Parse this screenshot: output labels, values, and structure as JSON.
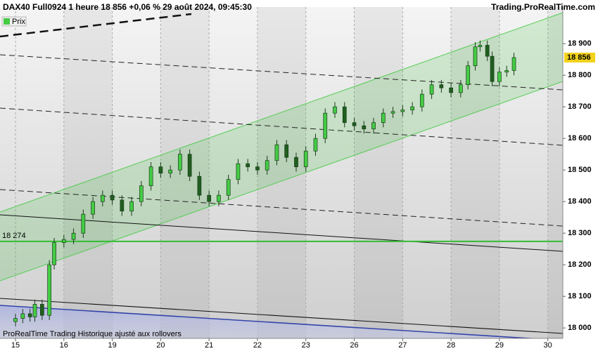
{
  "chart_data": {
    "type": "candlestick",
    "title": "DAX40 Full0924 1 heure 18 856 +0,06 % 29 août 2024, 09:45:30",
    "source": "Trading.ProRealTime.com",
    "footer": "ProRealTime Trading  Historique ajusté aux rollovers",
    "ylim": [
      17967,
      19016
    ],
    "yticks": [
      {
        "value": 18000,
        "label": "18 000"
      },
      {
        "value": 18100,
        "label": "18 100"
      },
      {
        "value": 18200,
        "label": "18 200"
      },
      {
        "value": 18300,
        "label": "18 300"
      },
      {
        "value": 18400,
        "label": "18 400"
      },
      {
        "value": 18500,
        "label": "18 500"
      },
      {
        "value": 18600,
        "label": "18 600"
      },
      {
        "value": 18700,
        "label": "18 700"
      },
      {
        "value": 18800,
        "label": "18 800"
      },
      {
        "value": 18900,
        "label": "18 900"
      }
    ],
    "xlim": [
      -0.32,
      11.31
    ],
    "xticks": [
      {
        "value": 0,
        "label": "15"
      },
      {
        "value": 1,
        "label": "16"
      },
      {
        "value": 2,
        "label": "19"
      },
      {
        "value": 3,
        "label": "20"
      },
      {
        "value": 4,
        "label": "21"
      },
      {
        "value": 5,
        "label": "22"
      },
      {
        "value": 6,
        "label": "23"
      },
      {
        "value": 7,
        "label": "26"
      },
      {
        "value": 8,
        "label": "27"
      },
      {
        "value": 9,
        "label": "28"
      },
      {
        "value": 10,
        "label": "29"
      },
      {
        "value": 11,
        "label": "30"
      }
    ],
    "hline": {
      "value": 18274,
      "label": "18 274",
      "color": "#33bb33"
    },
    "last_price": {
      "value": 18856,
      "label": "18 856"
    },
    "series": [
      {
        "name": "Prix",
        "color": "#44cc44",
        "down_color": "#1f5f1f",
        "x": [
          0.0,
          0.15,
          0.3,
          0.4,
          0.55,
          0.7,
          0.8,
          1.0,
          1.2,
          1.4,
          1.6,
          1.8,
          2.0,
          2.2,
          2.4,
          2.6,
          2.8,
          3.0,
          3.2,
          3.4,
          3.6,
          3.8,
          4.0,
          4.2,
          4.4,
          4.6,
          4.8,
          5.0,
          5.2,
          5.4,
          5.6,
          5.8,
          6.0,
          6.2,
          6.4,
          6.6,
          6.8,
          7.0,
          7.2,
          7.4,
          7.6,
          7.8,
          8.0,
          8.2,
          8.4,
          8.6,
          8.8,
          9.0,
          9.2,
          9.35,
          9.5,
          9.6,
          9.75,
          9.85,
          10.0,
          10.15,
          10.3
        ],
        "open": [
          18020,
          18030,
          18045,
          18035,
          18075,
          18040,
          18200,
          18270,
          18280,
          18300,
          18360,
          18400,
          18420,
          18405,
          18370,
          18400,
          18450,
          18510,
          18490,
          18500,
          18550,
          18480,
          18420,
          18400,
          18420,
          18470,
          18520,
          18510,
          18500,
          18530,
          18580,
          18540,
          18510,
          18560,
          18600,
          18680,
          18700,
          18650,
          18640,
          18630,
          18650,
          18680,
          18685,
          18690,
          18700,
          18740,
          18770,
          18760,
          18745,
          18770,
          18830,
          18890,
          18895,
          18860,
          18780,
          18810,
          18815
        ],
        "high": [
          18045,
          18060,
          18060,
          18090,
          18090,
          18215,
          18285,
          18295,
          18315,
          18375,
          18415,
          18435,
          18435,
          18420,
          18415,
          18465,
          18525,
          18525,
          18515,
          18565,
          18565,
          18495,
          18435,
          18435,
          18485,
          18535,
          18535,
          18525,
          18545,
          18595,
          18595,
          18555,
          18575,
          18615,
          18695,
          18715,
          18715,
          18665,
          18655,
          18665,
          18695,
          18700,
          18705,
          18715,
          18755,
          18785,
          18785,
          18775,
          18785,
          18845,
          18905,
          18910,
          18910,
          18875,
          18825,
          18830,
          18871
        ],
        "low": [
          18005,
          18015,
          18020,
          18020,
          18025,
          18025,
          18185,
          18255,
          18265,
          18285,
          18345,
          18385,
          18390,
          18355,
          18355,
          18385,
          18435,
          18475,
          18475,
          18485,
          18465,
          18405,
          18385,
          18385,
          18405,
          18455,
          18495,
          18485,
          18485,
          18515,
          18525,
          18495,
          18495,
          18545,
          18585,
          18665,
          18635,
          18625,
          18615,
          18615,
          18635,
          18665,
          18670,
          18675,
          18685,
          18725,
          18745,
          18730,
          18730,
          18755,
          18815,
          18875,
          18845,
          18765,
          18765,
          18795,
          18800
        ],
        "close": [
          18030,
          18045,
          18035,
          18075,
          18040,
          18200,
          18270,
          18280,
          18300,
          18360,
          18400,
          18420,
          18405,
          18370,
          18400,
          18450,
          18510,
          18490,
          18500,
          18550,
          18480,
          18420,
          18400,
          18420,
          18470,
          18520,
          18510,
          18500,
          18530,
          18580,
          18540,
          18510,
          18560,
          18600,
          18680,
          18700,
          18650,
          18640,
          18630,
          18650,
          18680,
          18685,
          18690,
          18700,
          18740,
          18770,
          18760,
          18745,
          18770,
          18830,
          18890,
          18895,
          18860,
          18780,
          18810,
          18815,
          18856
        ]
      }
    ]
  }
}
